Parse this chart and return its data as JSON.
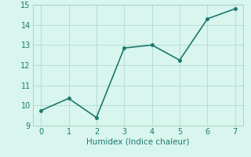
{
  "x": [
    0,
    1,
    2,
    3,
    4,
    5,
    6,
    7
  ],
  "y": [
    9.75,
    10.35,
    9.4,
    12.85,
    13.0,
    12.25,
    14.3,
    14.8
  ],
  "xlim": [
    -0.3,
    7.3
  ],
  "ylim": [
    9,
    15
  ],
  "yticks": [
    9,
    10,
    11,
    12,
    13,
    14,
    15
  ],
  "xticks": [
    0,
    1,
    2,
    3,
    4,
    5,
    6,
    7
  ],
  "xlabel": "Humidex (Indice chaleur)",
  "line_color": "#1a7a6e",
  "marker": "o",
  "marker_size": 2.5,
  "linewidth": 1.2,
  "background_color": "#d8f5ee",
  "grid_color": "#b8ddd4",
  "xlabel_fontsize": 7.5,
  "tick_fontsize": 7,
  "spine_color": "#aaccbb"
}
